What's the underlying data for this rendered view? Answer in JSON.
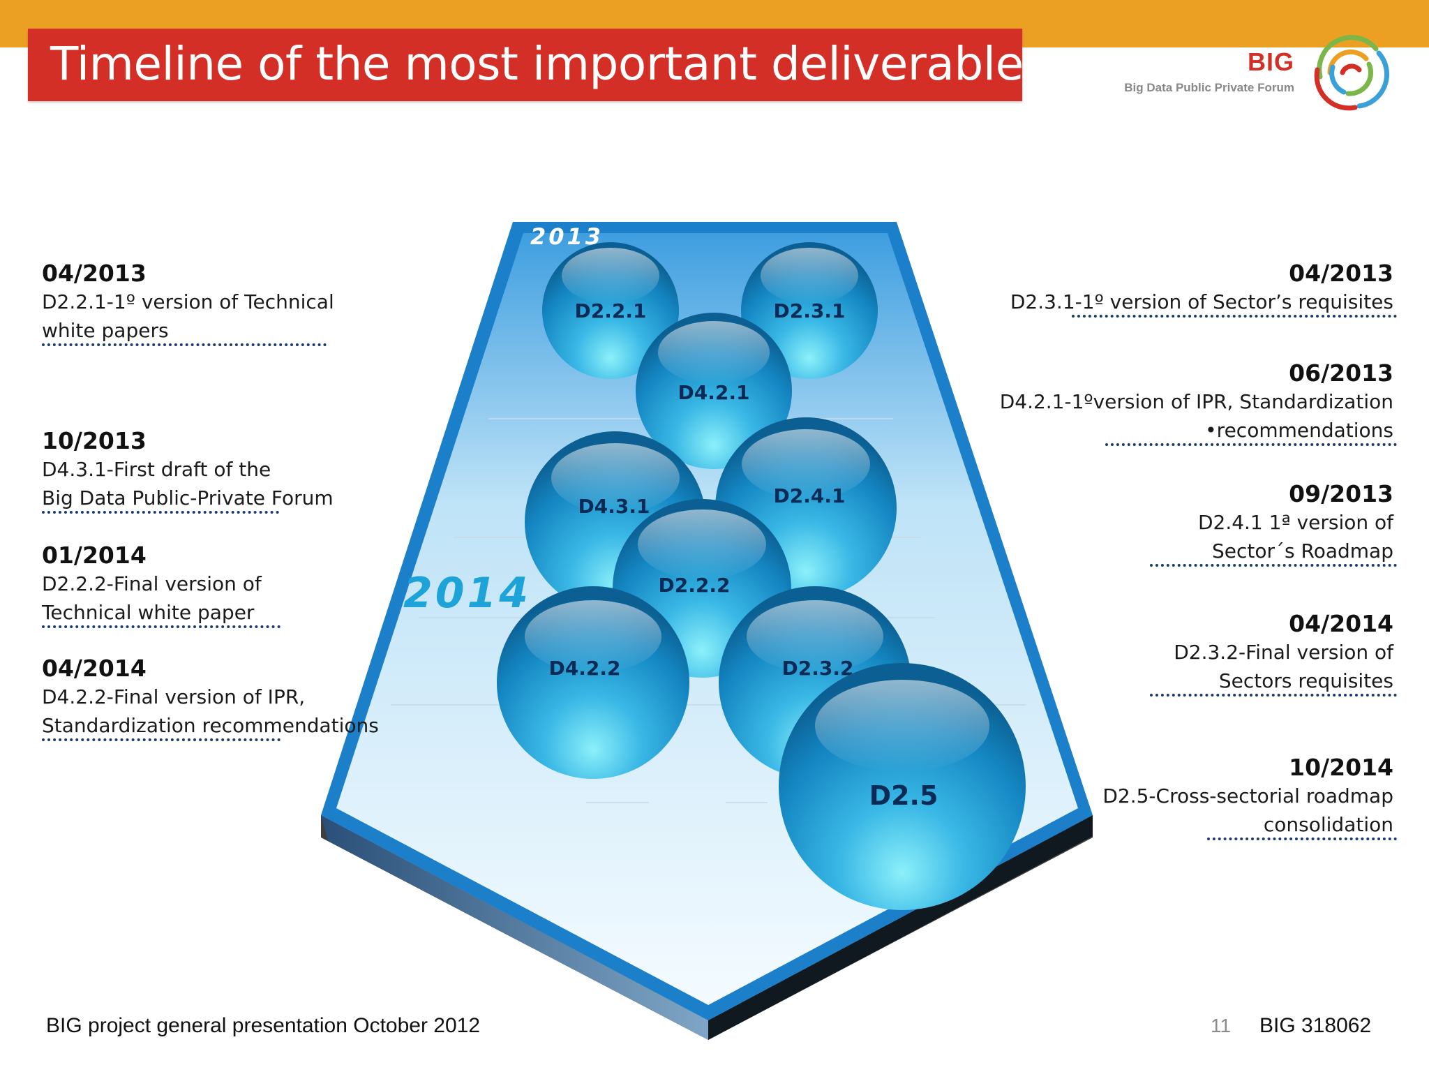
{
  "header": {
    "title": "Timeline of the most important deliverables",
    "logo_big": "BIG",
    "logo_sub": "Big Data Public Private Forum"
  },
  "diagram": {
    "years": [
      "2013",
      "2014"
    ],
    "spheres": [
      {
        "label": "D2.2.1",
        "cx": 0,
        "cy": 0
      },
      {
        "label": "D2.3.1"
      },
      {
        "label": "D4.2.1"
      },
      {
        "label": "D4.3.1"
      },
      {
        "label": "D2.4.1"
      },
      {
        "label": "D2.2.2"
      },
      {
        "label": "D4.2.2"
      },
      {
        "label": "D2.3.2"
      },
      {
        "label": "D2.5"
      }
    ]
  },
  "left_entries": [
    {
      "date": "04/2013",
      "desc": "D2.2.1-1º version of Technical\nwhite papers"
    },
    {
      "date": "10/2013",
      "desc": "D4.3.1-First draft of the\nBig Data Public-Private Forum"
    },
    {
      "date": "01/2014",
      "desc": "D2.2.2-Final version of\nTechnical white paper"
    },
    {
      "date": "04/2014",
      "desc": "D4.2.2-Final version of IPR,\nStandardization recommendations"
    }
  ],
  "right_entries": [
    {
      "date": "04/2013",
      "desc": "D2.3.1-1º version of Sector’s requisites"
    },
    {
      "date": "06/2013",
      "desc": "D4.2.1-1ºversion  of IPR, Standardization\n•recommendations"
    },
    {
      "date": "09/2013",
      "desc": "D2.4.1 1ª version of\nSector´s Roadmap"
    },
    {
      "date": "04/2014",
      "desc": "D2.3.2-Final version of\nSectors requisites"
    },
    {
      "date": "10/2014",
      "desc": "D2.5-Cross-sectorial roadmap\nconsolidation"
    }
  ],
  "footer": {
    "left": "BIG project general presentation October  2012",
    "page": "11",
    "right": "BIG 318062"
  },
  "colors": {
    "top_bar": "#eba024",
    "title_bar": "#d32f26",
    "sphere_dark": "#0d6fa6",
    "sphere_light": "#7fe3f7",
    "board_blue": "#1c7fc9"
  }
}
